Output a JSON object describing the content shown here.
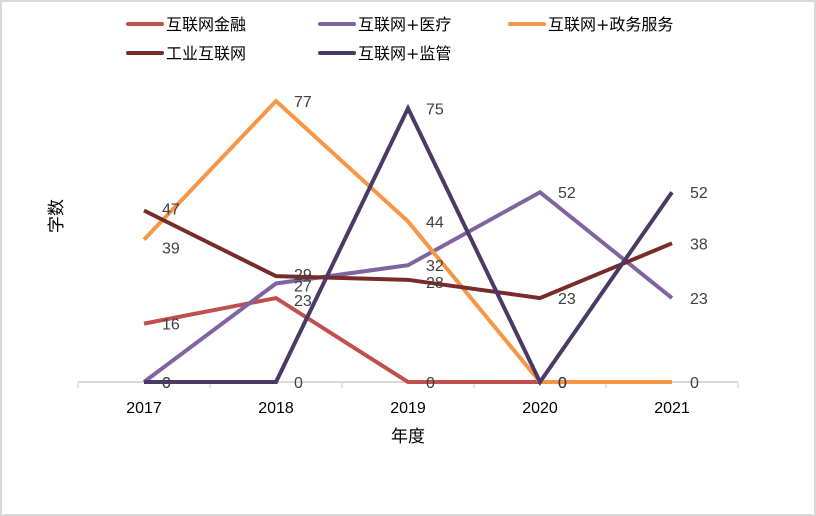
{
  "chart_data": {
    "type": "line",
    "title": "",
    "xlabel": "年度",
    "ylabel": "字数",
    "categories": [
      "2017",
      "2018",
      "2019",
      "2020",
      "2021"
    ],
    "ylim": [
      0,
      80
    ],
    "grid": false,
    "legend_position": "top",
    "series": [
      {
        "name": "互联网金融",
        "color": "#C0504D",
        "values": [
          16,
          23,
          0,
          0,
          null
        ]
      },
      {
        "name": "互联网+医疗",
        "color": "#8064A2",
        "values": [
          0,
          27,
          32,
          52,
          23
        ]
      },
      {
        "name": "互联网+政务服务",
        "color": "#F79646",
        "values": [
          39,
          77,
          44,
          0,
          0
        ]
      },
      {
        "name": "工业互联网",
        "color": "#772C2A",
        "values": [
          47,
          29,
          28,
          23,
          38
        ]
      },
      {
        "name": "互联网+监管",
        "color": "#4B3A63",
        "values": [
          0,
          0,
          75,
          0,
          52
        ]
      }
    ]
  }
}
